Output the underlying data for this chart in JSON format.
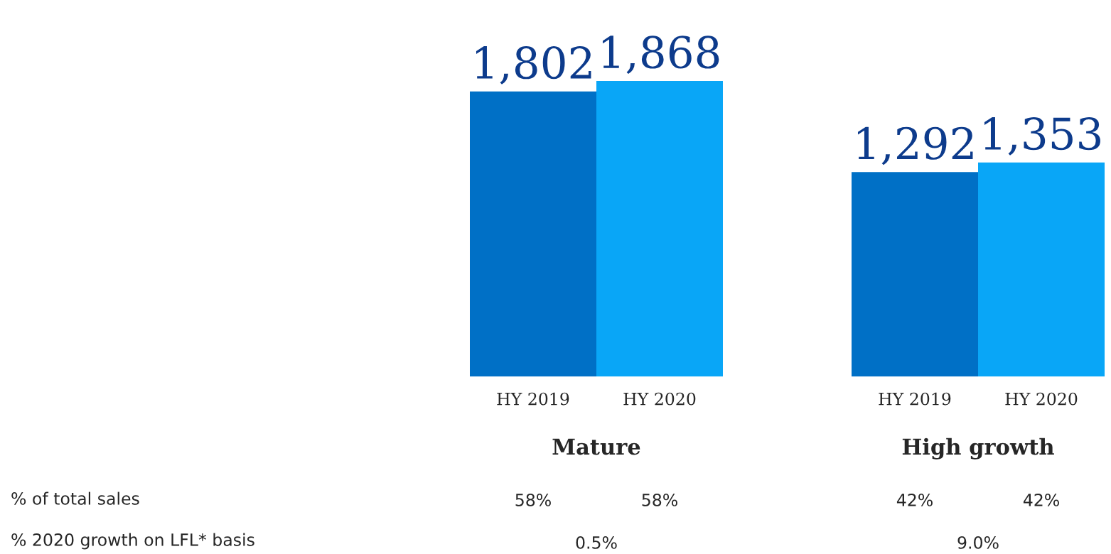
{
  "chart_data": [
    {
      "type": "bar",
      "xlabel": "Mature",
      "categories": [
        "HY 2019",
        "HY 2020"
      ],
      "values": [
        1802,
        1868
      ],
      "value_labels": [
        "1,802",
        "1,868"
      ],
      "colors": [
        "#0070c6",
        "#09a6f7"
      ],
      "tick_labels": "x",
      "grid": false,
      "legend": false,
      "annotations": [
        "% of total sales",
        "% 2020 growth on LFL* basis",
        "58%",
        "58%",
        "0.5%"
      ]
    },
    {
      "type": "bar",
      "xlabel": "High growth",
      "categories": [
        "HY 2019",
        "HY 2020"
      ],
      "values": [
        1292,
        1353
      ],
      "value_labels": [
        "1,292",
        "1,353"
      ],
      "colors": [
        "#0070c6",
        "#09a6f7"
      ],
      "tick_labels": "x",
      "grid": false,
      "legend": false,
      "annotations": [
        "42%",
        "42%",
        "9.0%"
      ]
    }
  ]
}
